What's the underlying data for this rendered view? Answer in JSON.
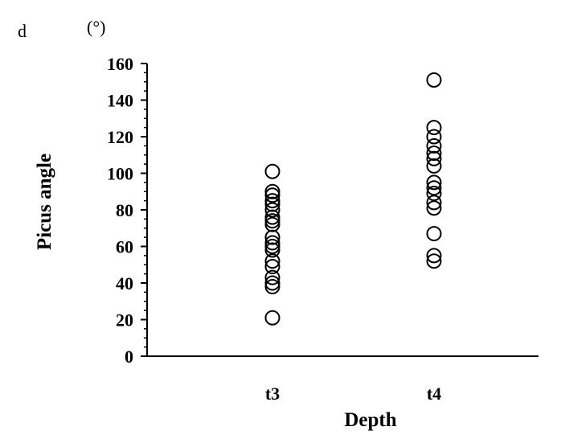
{
  "chart_data": {
    "type": "scatter",
    "panel_label": "d",
    "unit": "(°)",
    "xlabel": "Depth",
    "ylabel": "Picus angle",
    "categories": [
      "t3",
      "t4"
    ],
    "ylim": [
      0,
      160
    ],
    "yticks": [
      0,
      20,
      40,
      60,
      80,
      100,
      120,
      140,
      160
    ],
    "grid": false,
    "series": [
      {
        "category": "t3",
        "marker": "open-circle",
        "values": [
          101,
          90,
          88,
          85,
          83,
          80,
          76,
          74,
          72,
          65,
          62,
          60,
          58,
          52,
          49,
          43,
          40,
          38,
          21
        ]
      },
      {
        "category": "t4",
        "marker": "open-circle",
        "values": [
          151,
          125,
          120,
          115,
          111,
          108,
          104,
          95,
          92,
          89,
          84,
          81,
          67,
          55,
          52
        ]
      }
    ]
  }
}
